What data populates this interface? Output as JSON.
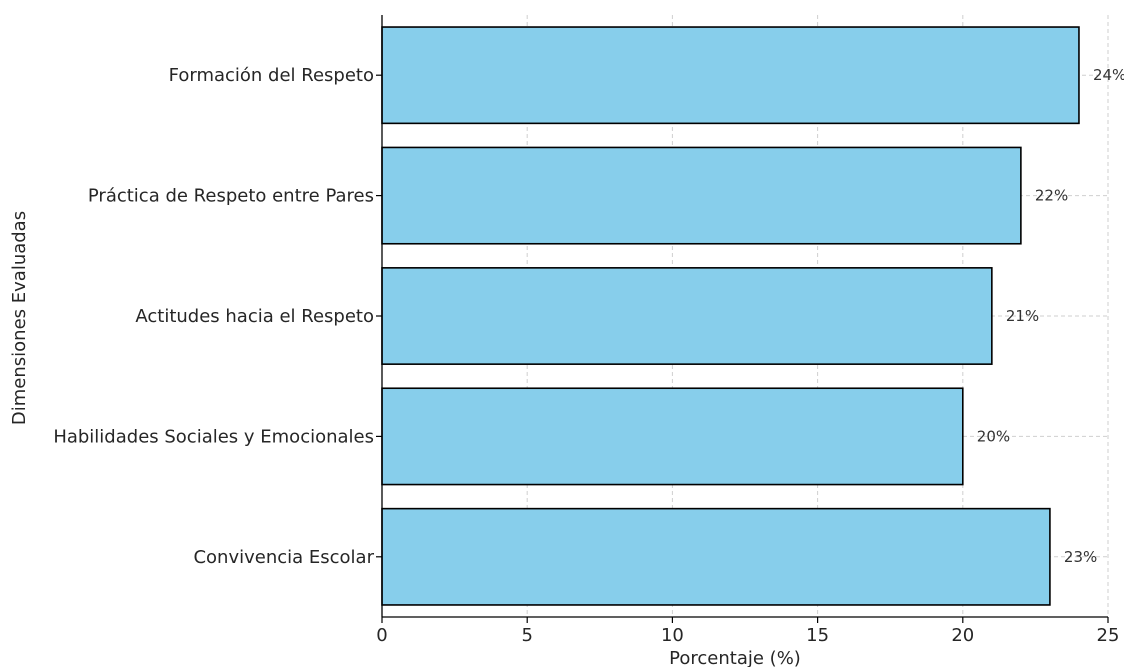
{
  "chart_data": {
    "type": "bar",
    "orientation": "horizontal",
    "title": "",
    "xlabel": "Porcentaje (%)",
    "ylabel": "Dimensiones Evaluadas",
    "xlim": [
      0,
      25
    ],
    "x_ticks": [
      0,
      5,
      10,
      15,
      20,
      25
    ],
    "grid": true,
    "legend": "none",
    "bar_color": "#87ceeb",
    "edge_color": "#000000",
    "categories": [
      "Formación del Respeto",
      "Práctica de Respeto entre Pares",
      "Actitudes hacia el Respeto",
      "Habilidades Sociales y Emocionales",
      "Convivencia Escolar"
    ],
    "values": [
      24,
      22,
      21,
      20,
      23
    ],
    "data_labels": [
      "24%",
      "22%",
      "21%",
      "20%",
      "23%"
    ]
  }
}
